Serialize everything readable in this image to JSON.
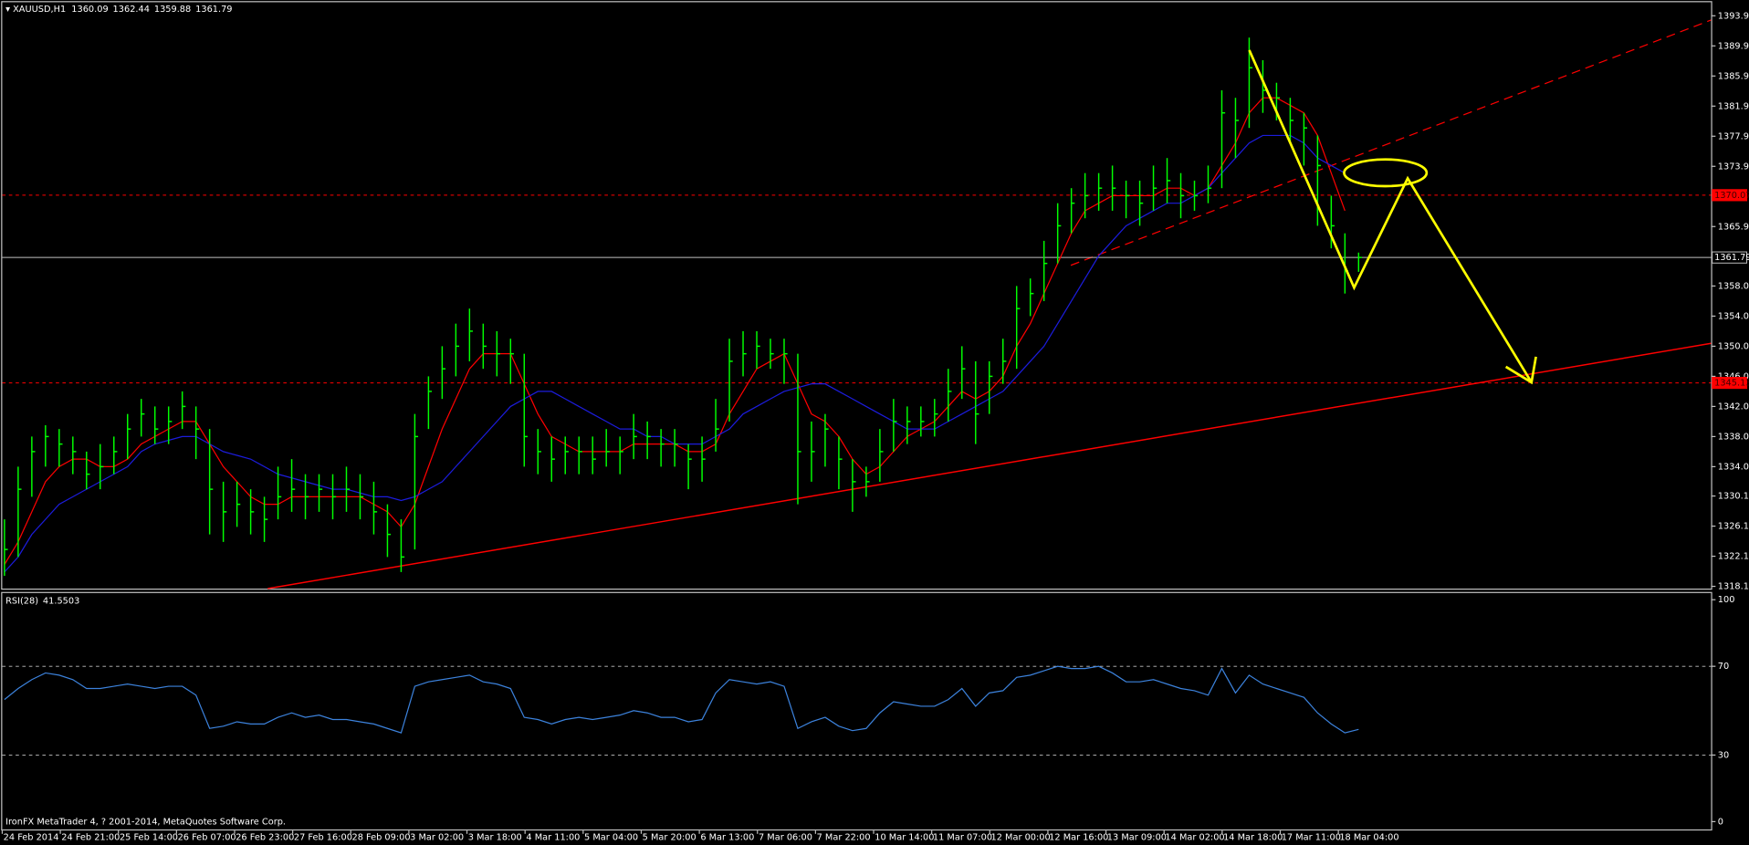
{
  "chart_data": [
    {
      "type": "ohlc",
      "title": "XAUUSD,H1",
      "header_values": [
        1360.09,
        1362.44,
        1359.88,
        1361.79
      ],
      "color": "#00ff00",
      "high": [
        1327,
        1334,
        1338,
        1339.5,
        1339,
        1338,
        1336,
        1337,
        1338,
        1341,
        1343,
        1342,
        1342,
        1344,
        1342,
        1339,
        1332,
        1332,
        1331,
        1330,
        1334,
        1335,
        1333,
        1333,
        1333,
        1334,
        1333,
        1332,
        1329,
        1327,
        1341,
        1346,
        1350,
        1353,
        1355,
        1353,
        1352,
        1351,
        1349,
        1339,
        1338,
        1338,
        1338,
        1338,
        1339,
        1338,
        1341,
        1340,
        1339,
        1339,
        1337,
        1338,
        1343,
        1351,
        1352,
        1352,
        1351,
        1351,
        1349,
        1340,
        1341,
        1338,
        1335,
        1334,
        1339,
        1343,
        1342,
        1342,
        1343,
        1347,
        1350,
        1348,
        1348,
        1351,
        1358,
        1359,
        1364,
        1369,
        1371,
        1373,
        1373,
        1374,
        1372,
        1372,
        1374,
        1375,
        1373,
        1372,
        1374,
        1384,
        1383,
        1391,
        1388,
        1385,
        1383,
        1381,
        1378,
        1370,
        1365,
        1362.44
      ],
      "low": [
        1319.5,
        1322,
        1330,
        1334,
        1334,
        1333,
        1331,
        1331,
        1333,
        1335,
        1338,
        1337,
        1337,
        1339,
        1335,
        1325,
        1324,
        1326,
        1325,
        1324,
        1327,
        1328,
        1327,
        1328,
        1327,
        1328,
        1327,
        1325,
        1322,
        1320,
        1323,
        1339,
        1343,
        1346,
        1348,
        1347,
        1346,
        1345,
        1334,
        1333,
        1332,
        1333,
        1333,
        1333,
        1334,
        1333,
        1335,
        1335,
        1334,
        1334,
        1331,
        1332,
        1336,
        1340,
        1346,
        1347,
        1347,
        1345,
        1329,
        1332,
        1334,
        1331,
        1328,
        1330,
        1332,
        1336,
        1337,
        1338,
        1338,
        1340,
        1343,
        1337,
        1341,
        1345,
        1347,
        1354,
        1356,
        1361,
        1365,
        1367,
        1368,
        1368,
        1367,
        1366,
        1368,
        1369,
        1367,
        1368,
        1369,
        1371,
        1375,
        1379,
        1381,
        1380,
        1377,
        1374,
        1366,
        1363,
        1357,
        1359.88
      ],
      "close": [
        1323,
        1331,
        1336,
        1338,
        1337,
        1336,
        1333,
        1334,
        1336,
        1339,
        1341,
        1339,
        1340,
        1342,
        1339,
        1331,
        1328,
        1329,
        1328,
        1327,
        1330,
        1331,
        1330,
        1331,
        1330,
        1331,
        1330,
        1328,
        1325,
        1322,
        1338,
        1344,
        1347,
        1350,
        1352,
        1350,
        1349,
        1349,
        1338,
        1336,
        1335,
        1336,
        1336,
        1335,
        1336,
        1336,
        1338,
        1338,
        1337,
        1337,
        1335,
        1335,
        1339,
        1348,
        1349,
        1350,
        1349,
        1349,
        1336,
        1336,
        1339,
        1335,
        1332,
        1332,
        1336,
        1340,
        1340,
        1340,
        1341,
        1344,
        1347,
        1341,
        1346,
        1348,
        1355,
        1357,
        1361,
        1366,
        1369,
        1370,
        1371,
        1371,
        1370,
        1369,
        1371,
        1372,
        1370,
        1370,
        1371,
        1381,
        1380,
        1387,
        1384,
        1383,
        1380,
        1379,
        1374,
        1366,
        1360,
        1361.79
      ],
      "series": [
        {
          "color": "#ff0000",
          "values": [
            1321,
            1324,
            1328,
            1332,
            1334,
            1335,
            1335,
            1334,
            1334,
            1335,
            1337,
            1338,
            1339,
            1340,
            1340,
            1337,
            1334,
            1332,
            1330,
            1329,
            1329,
            1330,
            1330,
            1330,
            1330,
            1330,
            1330,
            1329,
            1328,
            1326,
            1329,
            1334,
            1339,
            1343,
            1347,
            1349,
            1349,
            1349,
            1345,
            1341,
            1338,
            1337,
            1336,
            1336,
            1336,
            1336,
            1337,
            1337,
            1337,
            1337,
            1336,
            1336,
            1337,
            1341,
            1344,
            1347,
            1348,
            1349,
            1345,
            1341,
            1340,
            1338,
            1335,
            1333,
            1334,
            1336,
            1338,
            1339,
            1340,
            1342,
            1344,
            1343,
            1344,
            1346,
            1350,
            1353,
            1357,
            1361,
            1365,
            1368,
            1369,
            1370,
            1370,
            1370,
            1370,
            1371,
            1371,
            1370,
            1371,
            1374,
            1377,
            1381,
            1383,
            1383,
            1382,
            1381,
            1378,
            1373,
            1368,
            null
          ]
        },
        {
          "color": "#1c1cdc",
          "values": [
            1320,
            1322,
            1325,
            1327,
            1329,
            1330,
            1331,
            1332,
            1333,
            1334,
            1336,
            1337,
            1337.5,
            1338,
            1338,
            1337,
            1336,
            1335.5,
            1335,
            1334,
            1333,
            1332.5,
            1332,
            1331.5,
            1331,
            1331,
            1330.5,
            1330,
            1330,
            1329.5,
            1330,
            1331,
            1332,
            1334,
            1336,
            1338,
            1340,
            1342,
            1343,
            1344,
            1344,
            1343,
            1342,
            1341,
            1340,
            1339,
            1339,
            1338,
            1338,
            1337,
            1337,
            1337,
            1338,
            1339,
            1341,
            1342,
            1343,
            1344,
            1344.5,
            1345,
            1345,
            1344,
            1343,
            1342,
            1341,
            1340,
            1339,
            1339,
            1339,
            1340,
            1341,
            1342,
            1343,
            1344,
            1346,
            1348,
            1350,
            1353,
            1356,
            1359,
            1362,
            1364,
            1366,
            1367,
            1368,
            1369,
            1369,
            1370,
            1371,
            1373,
            1375,
            1377,
            1378,
            1378,
            1378,
            1377,
            1375,
            1374,
            1373,
            null
          ]
        }
      ],
      "hlines": [
        {
          "value": 1370.07,
          "color": "#ff0000",
          "box": "filled"
        },
        {
          "value": 1345.13,
          "color": "#ff0000",
          "box": "filled"
        },
        {
          "value": 1361.79,
          "color": "#c0c0c0",
          "box": "outline"
        }
      ],
      "ylim": [
        1317.8,
        1395.7
      ],
      "yticks": [
        {
          "value": 1393.9,
          "label": "1393.90"
        },
        {
          "value": 1389.9,
          "label": "1389.90"
        },
        {
          "value": 1385.9,
          "label": "1385.90"
        },
        {
          "value": 1381.9,
          "label": "1381.90"
        },
        {
          "value": 1377.9,
          "label": "1377.90"
        },
        {
          "value": 1373.9,
          "label": "1373.90"
        },
        {
          "value": 1365.9,
          "label": "1365.90"
        },
        {
          "value": 1358,
          "label": "1358.00"
        },
        {
          "value": 1354,
          "label": "1354.00"
        },
        {
          "value": 1350,
          "label": "1350.00"
        },
        {
          "value": 1346,
          "label": "1346.00"
        },
        {
          "value": 1342,
          "label": "1342.00"
        },
        {
          "value": 1338,
          "label": "1338.00"
        },
        {
          "value": 1334,
          "label": "1334.00"
        },
        {
          "value": 1330.1,
          "label": "1330.10"
        },
        {
          "value": 1326.1,
          "label": "1326.10"
        },
        {
          "value": 1322.1,
          "label": "1322.10"
        },
        {
          "value": 1318.1,
          "label": "1318.10"
        }
      ],
      "time_labels": [
        "24 Feb 2014",
        "24 Feb 21:00",
        "25 Feb 14:00",
        "26 Feb 07:00",
        "26 Feb 23:00",
        "27 Feb 16:00",
        "28 Feb 09:00",
        "3 Mar 02:00",
        "3 Mar 18:00",
        "4 Mar 11:00",
        "5 Mar 04:00",
        "5 Mar 20:00",
        "6 Mar 13:00",
        "7 Mar 06:00",
        "7 Mar 22:00",
        "10 Mar 14:00",
        "11 Mar 07:00",
        "12 Mar 00:00",
        "12 Mar 16:00",
        "13 Mar 09:00",
        "14 Mar 02:00",
        "14 Mar 18:00",
        "17 Mar 11:00",
        "18 Mar 04:00"
      ]
    },
    {
      "type": "line",
      "title": "RSI(28)",
      "color": "#3c82dc",
      "values": [
        55,
        60,
        64,
        67,
        66,
        64,
        60,
        60,
        61,
        62,
        61,
        60,
        61,
        61,
        57,
        42,
        43,
        45,
        44,
        44,
        47,
        49,
        47,
        48,
        46,
        46,
        45,
        44,
        42,
        40,
        61,
        63,
        64,
        65,
        66,
        63,
        62,
        60,
        47,
        46,
        44,
        46,
        47,
        46,
        47,
        48,
        50,
        49,
        47,
        47,
        45,
        46,
        58,
        64,
        63,
        62,
        63,
        61,
        42,
        45,
        47,
        43,
        41,
        42,
        49,
        54,
        53,
        52,
        52,
        55,
        60,
        52,
        58,
        59,
        65,
        66,
        68,
        70,
        69,
        69,
        70,
        67,
        63,
        63,
        64,
        62,
        60,
        59,
        57,
        69,
        58,
        66,
        62,
        60,
        58,
        56,
        49,
        44,
        40,
        41.5503
      ],
      "levels": [
        70,
        30
      ],
      "ylim": [
        -3.5,
        103
      ],
      "yticks": [
        100,
        70,
        30,
        0
      ]
    }
  ],
  "footer": "IronFX MetaTrader 4, ? 2001-2014, MetaQuotes Software Corp."
}
